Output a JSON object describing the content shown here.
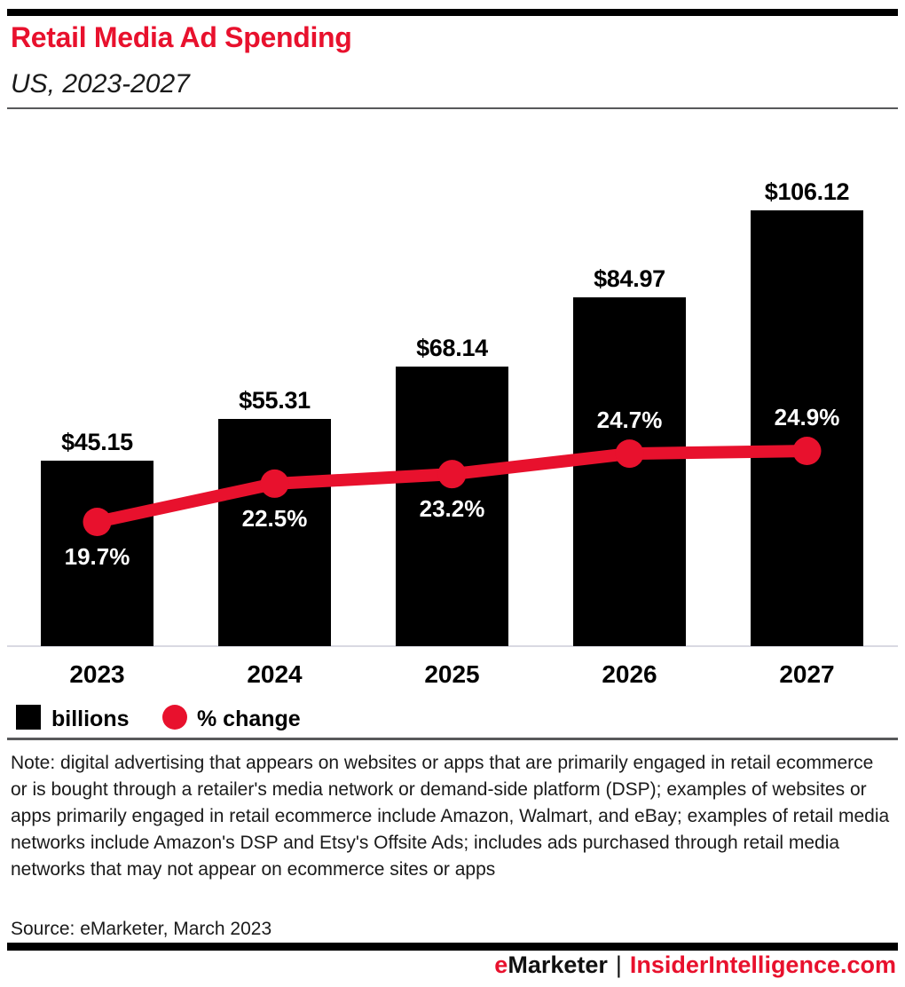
{
  "chart_data": {
    "type": "bar",
    "title": "Retail Media Ad Spending",
    "subtitle": "US, 2023-2027",
    "categories": [
      "2023",
      "2024",
      "2025",
      "2026",
      "2027"
    ],
    "series": [
      {
        "name": "billions",
        "type": "bar",
        "values": [
          45.15,
          55.31,
          68.14,
          84.97,
          106.12
        ],
        "labels": [
          "$45.15",
          "$55.31",
          "$68.14",
          "$84.97",
          "$106.12"
        ],
        "color": "#000000"
      },
      {
        "name": "% change",
        "type": "line",
        "values": [
          19.7,
          22.5,
          23.2,
          24.7,
          24.9
        ],
        "labels": [
          "19.7%",
          "22.5%",
          "23.2%",
          "24.7%",
          "24.9%"
        ],
        "label_positions": [
          "below",
          "below",
          "below",
          "above",
          "above"
        ],
        "color": "#e8112d"
      }
    ],
    "legend": [
      {
        "label": "billions",
        "swatch": "square",
        "color": "#000000"
      },
      {
        "label": "% change",
        "swatch": "circle",
        "color": "#e8112d"
      }
    ],
    "legend_position": "bottom-left",
    "grid": false,
    "value_axis_visible": false
  },
  "note": "Note: digital advertising that appears on websites or apps that are primarily engaged in retail ecommerce or is bought through a retailer's media network or demand-side platform (DSP); examples of websites or apps primarily engaged in retail ecommerce include Amazon, Walmart, and eBay; examples of retail media networks include Amazon's DSP and Etsy's Offsite Ads; includes ads purchased through retail media networks that may not appear on ecommerce sites or apps",
  "source": "Source: eMarketer, March 2023",
  "footer": {
    "brand_prefix": "e",
    "brand_name": "Marketer",
    "separator": "|",
    "site": "InsiderIntelligence.com"
  },
  "colors": {
    "accent_red": "#e8112d",
    "bar_black": "#000000",
    "rule_gray": "#58595b",
    "baseline_gray": "#d9d9e2"
  }
}
